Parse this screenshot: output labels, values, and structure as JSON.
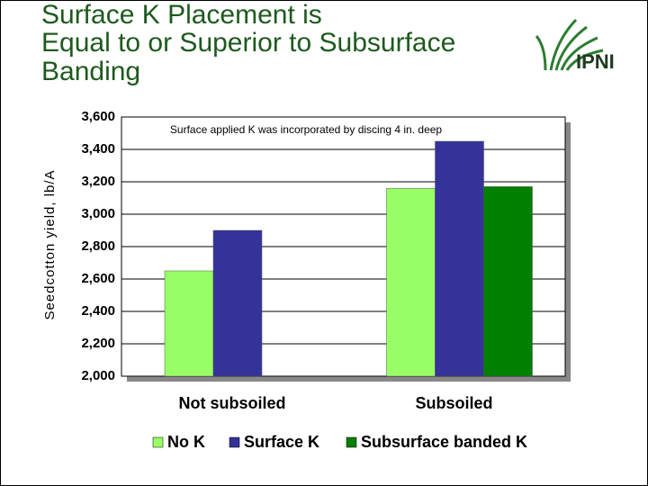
{
  "title": [
    "Surface K Placement is",
    "Equal to or Superior to Subsurface",
    "Banding"
  ],
  "logo_text": "IPNI",
  "chart_data": {
    "type": "bar",
    "annotation": "Surface applied K was incorporated by discing 4 in. deep",
    "y_label": "Seedcotton yield, lb/A",
    "categories": [
      "Not subsoiled",
      "Subsoiled"
    ],
    "series": [
      {
        "name": "No K",
        "color": "#99ff66",
        "values": [
          2650,
          3160
        ]
      },
      {
        "name": "Surface K",
        "color": "#333399",
        "values": [
          2900,
          3450
        ]
      },
      {
        "name": "Subsurface banded K",
        "color": "#008000",
        "values": [
          null,
          3170
        ]
      }
    ],
    "ylim": [
      2000,
      3600
    ],
    "yticks": [
      {
        "value": 2000,
        "label": "2,000"
      },
      {
        "value": 2200,
        "label": "2,200"
      },
      {
        "value": 2400,
        "label": "2,400"
      },
      {
        "value": 2600,
        "label": "2,600"
      },
      {
        "value": 2800,
        "label": "2,800"
      },
      {
        "value": 3000,
        "label": "3,000"
      },
      {
        "value": 3200,
        "label": "3,200"
      },
      {
        "value": 3400,
        "label": "3,400"
      },
      {
        "value": 3600,
        "label": "3,600"
      }
    ],
    "grid": true,
    "legend": "bottom"
  }
}
